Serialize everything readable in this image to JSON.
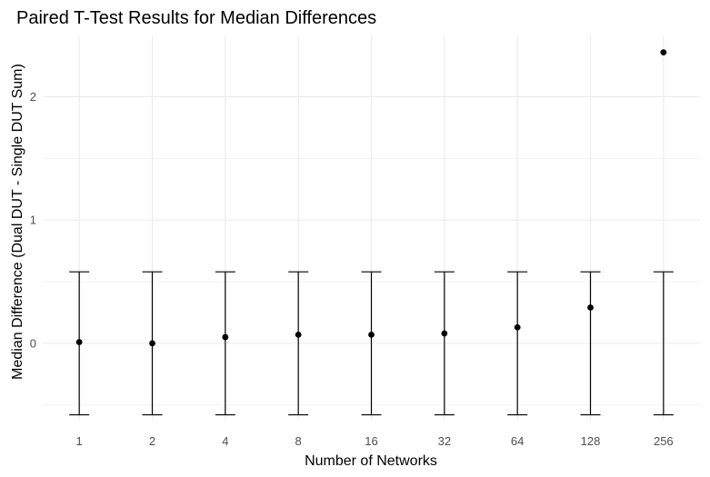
{
  "colors": {
    "background": "#ffffff",
    "point": "#000000",
    "error_bar": "#000000",
    "grid_major": "#ebebeb",
    "grid_minor": "#f2f2f2",
    "tick_text": "#4d4d4d"
  },
  "chart_data": {
    "type": "scatter",
    "title": "Paired T-Test Results for Median Differences",
    "xlabel": "Number of Networks",
    "ylabel": "Median Difference (Dual DUT - Single DUT Sum)",
    "categories": [
      "1",
      "2",
      "4",
      "8",
      "16",
      "32",
      "64",
      "128",
      "256"
    ],
    "values": [
      0.01,
      0.0,
      0.05,
      0.07,
      0.07,
      0.08,
      0.13,
      0.29,
      2.36
    ],
    "error_lower": [
      -0.58,
      -0.58,
      -0.58,
      -0.58,
      -0.58,
      -0.58,
      -0.58,
      -0.58,
      -0.58
    ],
    "error_upper": [
      0.58,
      0.58,
      0.58,
      0.58,
      0.58,
      0.58,
      0.58,
      0.58,
      0.58
    ],
    "ylim": [
      -0.62,
      2.49
    ],
    "y_ticks": [
      0,
      1,
      2
    ],
    "y_tick_labels": [
      "0",
      "1",
      "2"
    ],
    "grid": true,
    "legend": "none"
  }
}
